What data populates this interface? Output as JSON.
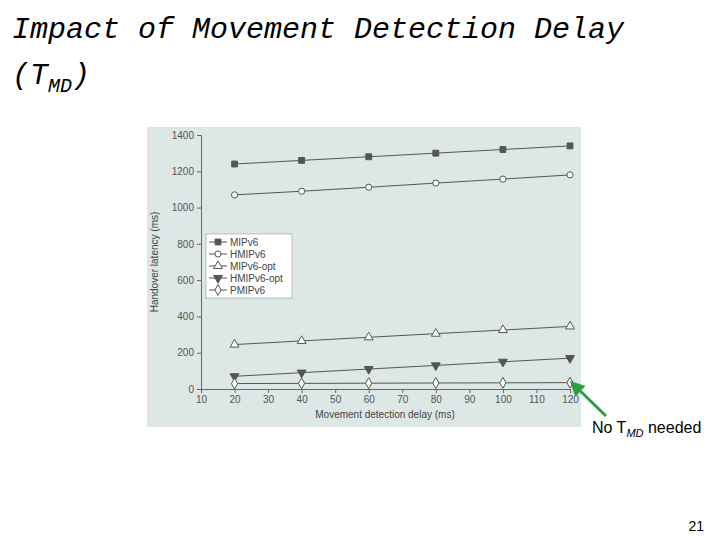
{
  "chart_data": {
    "type": "line",
    "title": [
      [
        "Impact of Movement Detection Delay"
      ],
      [
        "(T",
        "MD",
        ")"
      ]
    ],
    "x_label": "Movement detection delay (ms)",
    "y_label": "Handover latency (ms)",
    "x": [
      20,
      40,
      60,
      80,
      100,
      120
    ],
    "series": [
      {
        "name": "MIPv6",
        "color": "#555555",
        "marker": "square-filled",
        "values": [
          1240,
          1260,
          1280,
          1300,
          1320,
          1340
        ]
      },
      {
        "name": "HMIPv6",
        "color": "#555555",
        "marker": "circle-open",
        "values": [
          1070,
          1090,
          1112,
          1135,
          1157,
          1180
        ]
      },
      {
        "name": "MIPv6-opt",
        "color": "#555555",
        "marker": "triangle-open",
        "values": [
          245,
          265,
          285,
          305,
          325,
          345
        ]
      },
      {
        "name": "HMIPv6-opt",
        "color": "#555555",
        "marker": "triangle-down-filled",
        "values": [
          70,
          90,
          110,
          130,
          150,
          170
        ]
      },
      {
        "name": "PMIPv6",
        "color": "#555555",
        "marker": "diamond-open",
        "values": [
          30,
          31,
          32,
          33,
          34,
          35
        ]
      }
    ],
    "xlim": [
      10,
      120
    ],
    "xticks": [
      10,
      20,
      30,
      40,
      50,
      60,
      70,
      80,
      90,
      100,
      110,
      120
    ],
    "ylim": [
      0,
      1400
    ],
    "yticks": [
      0,
      200,
      400,
      600,
      800,
      1000,
      1200,
      1400
    ],
    "grid": false,
    "legend": "upper-left",
    "annotation": [
      "No T",
      "MD",
      " needed"
    ],
    "page": "21"
  }
}
